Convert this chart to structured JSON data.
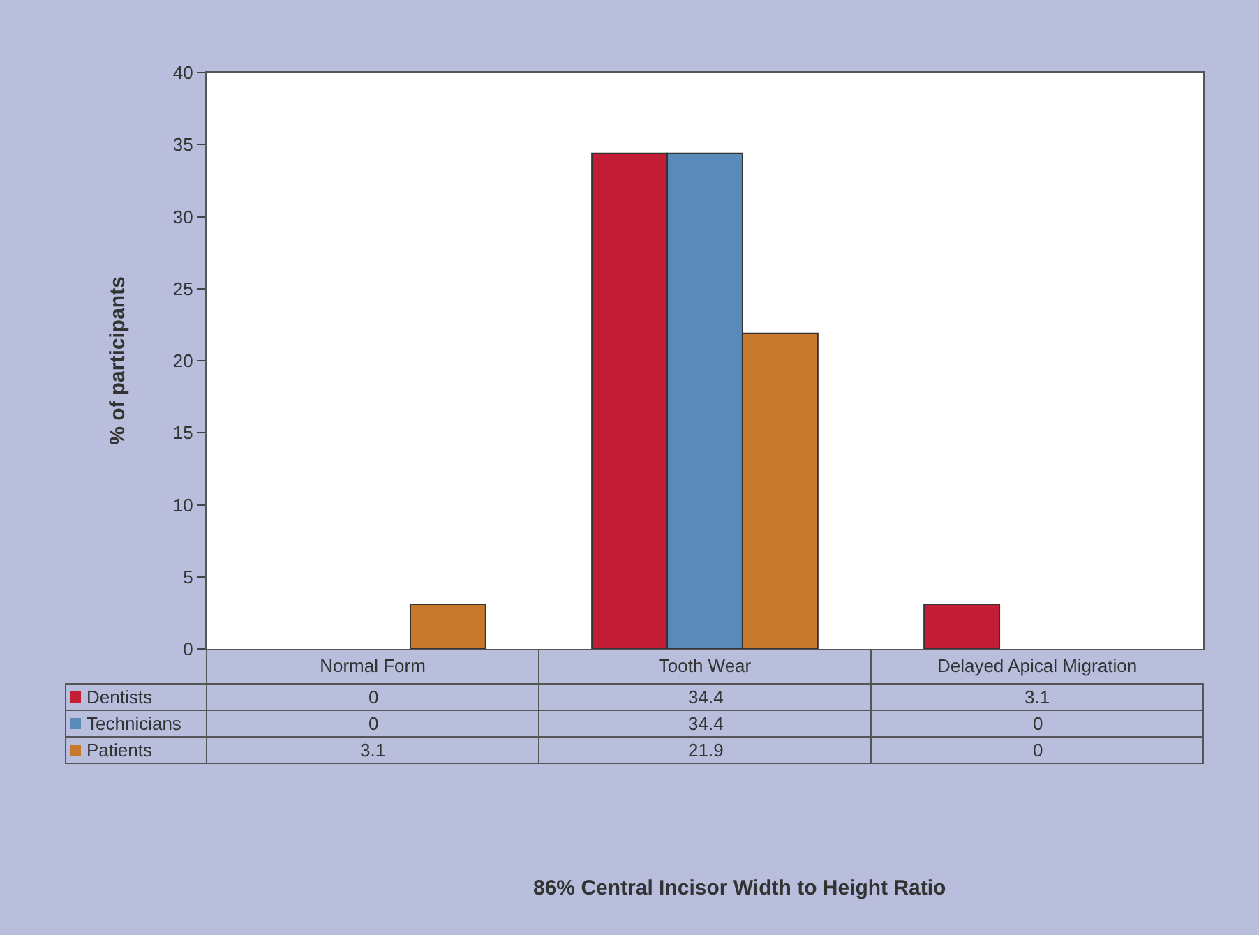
{
  "chart_data": {
    "type": "bar",
    "annotations": [
      "86% Central Incisor Width to Height Ratio"
    ],
    "ylabel": "% of participants",
    "categories": [
      "Normal Form",
      "Tooth Wear",
      "Delayed Apical Migration"
    ],
    "series": [
      {
        "name": "Dentists",
        "color": "#c41e36",
        "values": [
          0,
          34.4,
          3.1
        ]
      },
      {
        "name": "Technicians",
        "color": "#5a8ab8",
        "values": [
          0,
          34.4,
          0
        ]
      },
      {
        "name": "Patients",
        "color": "#c8782c",
        "values": [
          3.1,
          21.9,
          0
        ]
      }
    ],
    "ylim": [
      0,
      40
    ],
    "yticks": [
      0,
      5,
      10,
      15,
      20,
      25,
      30,
      35,
      40
    ],
    "legend": "bottom left",
    "data_labels": true
  }
}
